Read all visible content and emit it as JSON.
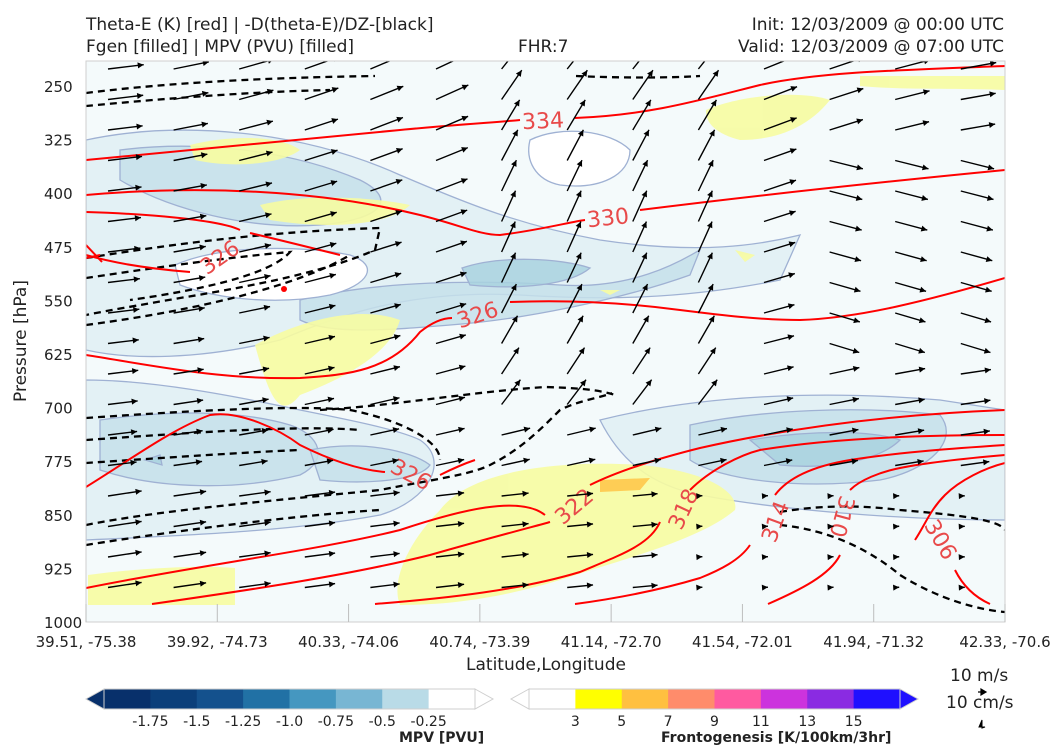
{
  "header": {
    "title_line1": "Theta-E (K) [red] | -D(theta-E)/DZ-[black]",
    "title_line2": "Fgen [filled] | MPV (PVU) [filled]",
    "fhr": "FHR:7",
    "init": "Init: 12/03/2009 @ 00:00 UTC",
    "valid": "Valid: 12/03/2009 @ 07:00 UTC"
  },
  "chart_data": {
    "type": "cross-section",
    "xlabel": "Latitude,Longitude",
    "ylabel": "Pressure [hPa]",
    "x_ticks": [
      "39.51, -75.38",
      "39.92, -74.73",
      "40.33, -74.06",
      "40.74, -73.39",
      "41.14, -72.70",
      "41.54, -72.01",
      "41.94, -71.32",
      "42.33, -70.6"
    ],
    "y_ticks": [
      250,
      325,
      400,
      475,
      550,
      625,
      700,
      775,
      850,
      925,
      1000
    ],
    "ylim": [
      1000,
      215
    ],
    "theta_e_contour_labels": [
      334,
      330,
      326,
      326,
      326,
      322,
      318,
      314,
      310,
      306
    ],
    "theta_e_color": "#ff0000",
    "stability_contour_color": "#000000",
    "wind_vector_scale": [
      "10 m/s",
      "10 cm/s"
    ]
  },
  "mpv_colorbar": {
    "title": "MPV [PVU]",
    "ticks": [
      "-1.75",
      "-1.5",
      "-1.25",
      "-1.0",
      "-0.75",
      "-0.5",
      "-0.25"
    ],
    "colors": [
      "#08306b",
      "#0b3f7a",
      "#14518d",
      "#2171a5",
      "#4597c0",
      "#78b6d3",
      "#b9dbe7",
      "#ffffff"
    ]
  },
  "fgen_colorbar": {
    "title": "Frontogenesis [K/100km/3hr]",
    "ticks": [
      "3",
      "5",
      "7",
      "9",
      "11",
      "13",
      "15"
    ],
    "colors": [
      "#ffffff",
      "#ffff00",
      "#ffc040",
      "#ff8c6b",
      "#ff5aa0",
      "#cc33dd",
      "#8a2be2",
      "#1f10ff"
    ]
  }
}
